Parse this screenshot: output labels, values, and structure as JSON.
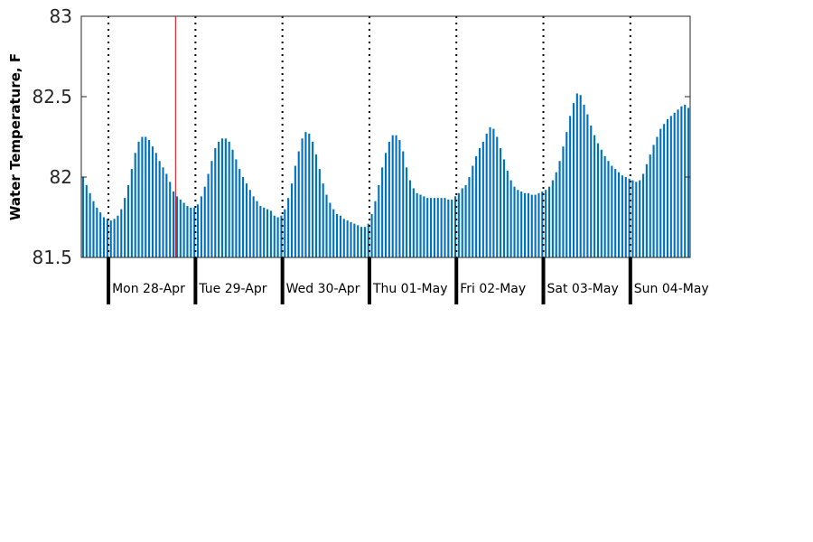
{
  "chart_data": {
    "type": "bar",
    "ylabel": "Water Temperature, F",
    "ylim": [
      81.5,
      83
    ],
    "yticks": [
      81.5,
      82,
      82.5,
      83
    ],
    "ytick_labels": [
      "81.5",
      "82",
      "82.5",
      "83"
    ],
    "grid": false,
    "bar_color": "#0072BD",
    "marker_color": "#E00000",
    "day_labels": [
      "Mon 28-Apr",
      "Tue 29-Apr",
      "Wed 30-Apr",
      "Thu 01-May",
      "Fri 02-May",
      "Sat 03-May",
      "Sun 04-May"
    ],
    "x_hours_range": [
      0,
      168
    ],
    "day_boundaries_hours": [
      7.5,
      31.5,
      55.5,
      79.5,
      103.5,
      127.5,
      151.5
    ],
    "current_time_hours": 26,
    "series": [
      {
        "values": [
          82.0,
          81.95,
          81.9,
          81.85,
          81.81,
          81.78,
          81.75,
          81.74,
          81.73,
          81.74,
          81.76,
          81.8,
          81.87,
          81.95,
          82.05,
          82.15,
          82.22,
          82.25,
          82.25,
          82.23,
          82.19,
          82.15,
          82.1,
          82.06,
          82.02,
          81.97,
          81.91,
          81.88,
          81.86,
          81.84,
          81.82,
          81.81,
          81.81,
          81.83,
          81.88,
          81.94,
          82.02,
          82.1,
          82.18,
          82.22,
          82.24,
          82.24,
          82.22,
          82.17,
          82.11,
          82.05,
          82.0,
          81.96,
          81.92,
          81.88,
          81.85,
          81.82,
          81.81,
          81.8,
          81.79,
          81.76,
          81.75,
          81.76,
          81.8,
          81.87,
          81.96,
          82.07,
          82.16,
          82.24,
          82.28,
          82.27,
          82.22,
          82.14,
          82.05,
          81.96,
          81.89,
          81.84,
          81.8,
          81.77,
          81.76,
          81.74,
          81.73,
          81.72,
          81.71,
          81.7,
          81.69,
          81.69,
          81.71,
          81.77,
          81.85,
          81.95,
          82.06,
          82.15,
          82.22,
          82.26,
          82.26,
          82.23,
          82.16,
          82.06,
          81.98,
          81.93,
          81.9,
          81.89,
          81.88,
          81.87,
          81.87,
          81.87,
          81.87,
          81.87,
          81.87,
          81.86,
          81.86,
          81.88,
          81.9,
          81.93,
          81.95,
          82.0,
          82.07,
          82.13,
          82.18,
          82.22,
          82.27,
          82.31,
          82.3,
          82.25,
          82.18,
          82.11,
          82.04,
          81.98,
          81.94,
          81.92,
          81.91,
          81.9,
          81.9,
          81.89,
          81.89,
          81.9,
          81.91,
          81.92,
          81.94,
          81.98,
          82.03,
          82.1,
          82.19,
          82.28,
          82.38,
          82.46,
          82.52,
          82.51,
          82.45,
          82.39,
          82.32,
          82.26,
          82.21,
          82.17,
          82.13,
          82.1,
          82.07,
          82.05,
          82.03,
          82.01,
          82.0,
          81.99,
          81.98,
          81.97,
          81.98,
          82.02,
          82.08,
          82.14,
          82.2,
          82.25,
          82.3,
          82.33,
          82.36,
          82.38,
          82.4,
          82.42,
          82.44,
          82.45,
          82.43
        ]
      }
    ]
  }
}
